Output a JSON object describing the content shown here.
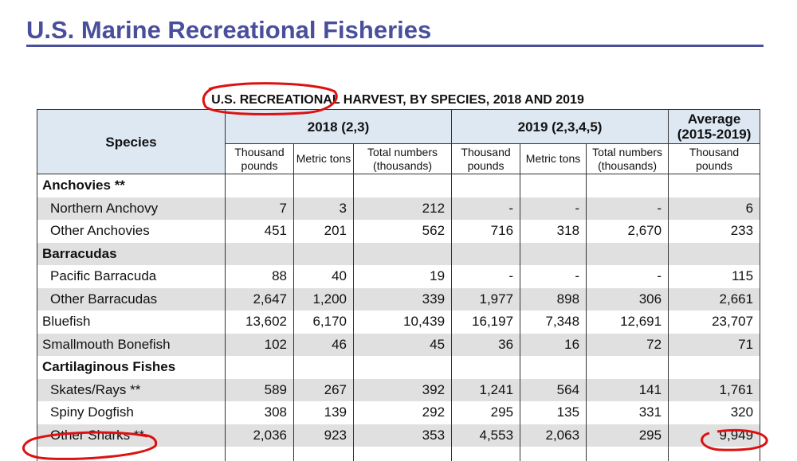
{
  "header": {
    "title": "U.S. Marine Recreational Fisheries"
  },
  "table": {
    "title": "U.S. RECREATIONAL HARVEST, BY SPECIES, 2018 AND 2019",
    "species_header": "Species",
    "groups": [
      {
        "label": "2018 (2,3)",
        "columns": [
          "Thousand pounds",
          "Metric tons",
          "Total numbers (thousands)"
        ]
      },
      {
        "label": "2019 (2,3,4,5)",
        "columns": [
          "Thousand pounds",
          "Metric tons",
          "Total numbers (thousands)"
        ]
      },
      {
        "label": "Average (2015-2019)",
        "columns": [
          "Thousand pounds"
        ]
      }
    ],
    "rows": [
      {
        "name": "Anchovies **",
        "items": [
          {
            "name": "Northern Anchovy",
            "values": [
              "7",
              "3",
              "212",
              "-",
              "-",
              "-",
              "6"
            ]
          },
          {
            "name": "Other Anchovies",
            "values": [
              "451",
              "201",
              "562",
              "716",
              "318",
              "2,670",
              "233"
            ]
          }
        ]
      },
      {
        "name": "Barracudas",
        "items": [
          {
            "name": "Pacific Barracuda",
            "values": [
              "88",
              "40",
              "19",
              "-",
              "-",
              "-",
              "115"
            ]
          },
          {
            "name": "Other Barracudas",
            "values": [
              "2,647",
              "1,200",
              "339",
              "1,977",
              "898",
              "306",
              "2,661"
            ]
          }
        ]
      },
      {
        "name": "Bluefish",
        "values": [
          "13,602",
          "6,170",
          "10,439",
          "16,197",
          "7,348",
          "12,691",
          "23,707"
        ]
      },
      {
        "name": "Smallmouth Bonefish",
        "values": [
          "102",
          "46",
          "45",
          "36",
          "16",
          "72",
          "71"
        ]
      },
      {
        "name": "Cartilaginous Fishes",
        "items": [
          {
            "name": "Skates/Rays **",
            "values": [
              "589",
              "267",
              "392",
              "1,241",
              "564",
              "141",
              "1,761"
            ]
          },
          {
            "name": "Spiny Dogfish",
            "values": [
              "308",
              "139",
              "292",
              "295",
              "135",
              "331",
              "320"
            ]
          },
          {
            "name": "Other Sharks **",
            "values": [
              "2,036",
              "923",
              "353",
              "4,553",
              "2,063",
              "295",
              "9,949"
            ]
          }
        ]
      }
    ]
  }
}
